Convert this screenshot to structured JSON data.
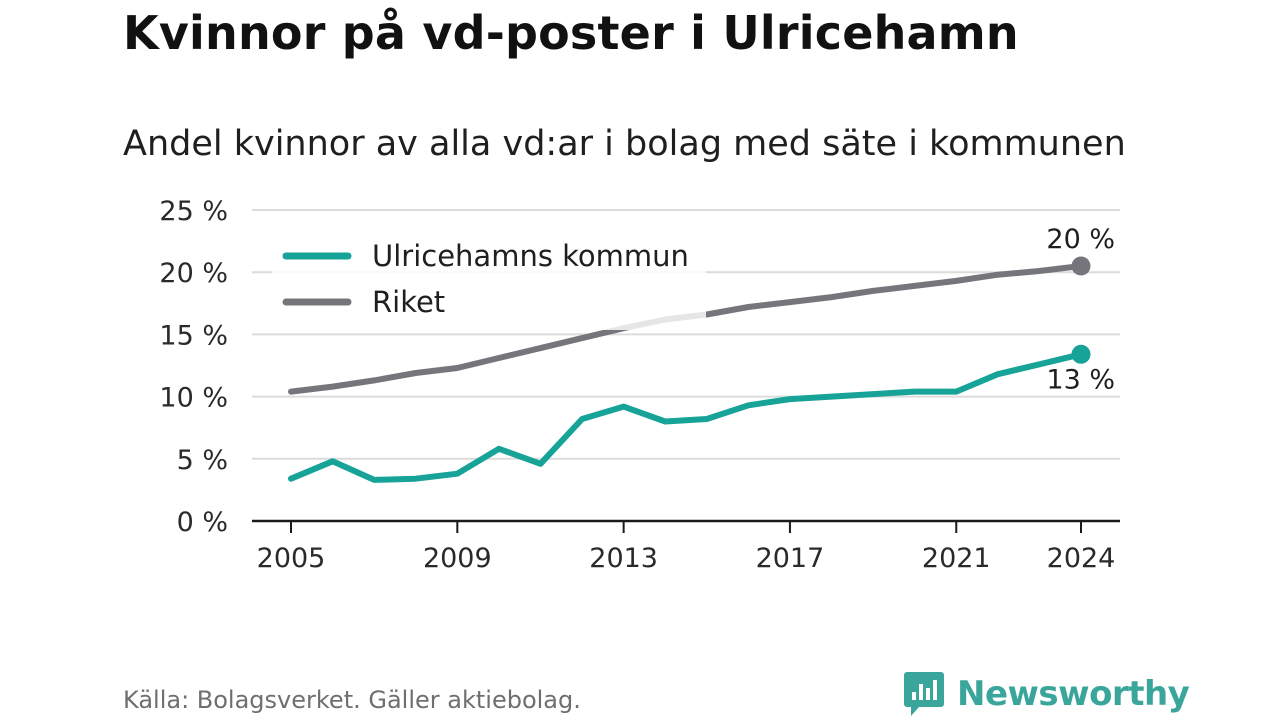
{
  "chart_data": {
    "type": "line",
    "title": "Kvinnor på vd-poster i Ulricehamn",
    "subtitle": "Andel kvinnor av alla vd:ar i bolag med säte i kommunen",
    "x": [
      2005,
      2006,
      2007,
      2008,
      2009,
      2010,
      2011,
      2012,
      2013,
      2014,
      2015,
      2016,
      2017,
      2018,
      2019,
      2020,
      2021,
      2022,
      2023,
      2024
    ],
    "series": [
      {
        "name": "Ulricehamns kommun",
        "color": "#17a398",
        "values": [
          3.4,
          4.8,
          3.3,
          3.4,
          3.8,
          5.8,
          4.6,
          8.2,
          9.2,
          8.0,
          8.2,
          9.3,
          9.8,
          10.0,
          10.2,
          10.4,
          10.4,
          11.8,
          12.6,
          13.4
        ],
        "end_label": "13 %"
      },
      {
        "name": "Riket",
        "color": "#76757b",
        "values": [
          10.4,
          10.8,
          11.3,
          11.9,
          12.3,
          13.1,
          13.9,
          14.7,
          15.5,
          16.2,
          16.6,
          17.2,
          17.6,
          18.0,
          18.5,
          18.9,
          19.3,
          19.8,
          20.1,
          20.5
        ],
        "end_label": "20 %"
      }
    ],
    "xticks": [
      "2005",
      "2009",
      "2013",
      "2017",
      "2021",
      "2024"
    ],
    "yticks": [
      "0 %",
      "5 %",
      "10 %",
      "15 %",
      "20 %",
      "25 %"
    ],
    "ylim": [
      0,
      25
    ],
    "grid": true,
    "legend": "top-left"
  },
  "footer": {
    "source": "Källa: Bolagsverket. Gäller aktiebolag.",
    "brand": "Newsworthy"
  }
}
